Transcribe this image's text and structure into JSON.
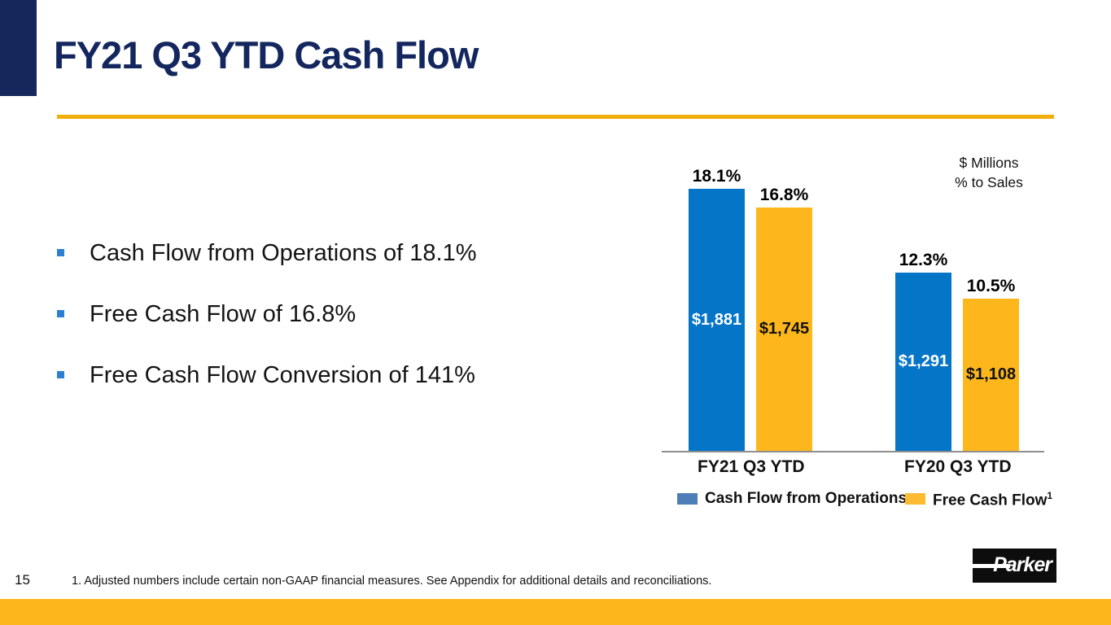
{
  "slide": {
    "title": "FY21 Q3 YTD Cash Flow",
    "page_number": "15",
    "footnote": "1. Adjusted numbers include certain non-GAAP financial measures. See Appendix for additional details and reconciliations.",
    "logo_text": "Parker"
  },
  "bullets": [
    "Cash Flow from Operations of 18.1%",
    "Free Cash Flow of 16.8%",
    "Free Cash Flow Conversion of 141%"
  ],
  "chart_data": {
    "type": "bar",
    "title": "",
    "units_line1": "$ Millions",
    "units_line2": "% to Sales",
    "categories": [
      "FY21 Q3 YTD",
      "FY20 Q3 YTD"
    ],
    "series": [
      {
        "name": "Cash Flow from Operations",
        "pct_to_sales": [
          18.1,
          12.3
        ],
        "dollars_millions": [
          1881,
          1291
        ],
        "pct_labels": [
          "18.1%",
          "12.3%"
        ],
        "dollar_labels": [
          "$1,881",
          "$1,291"
        ],
        "bar_color": "#0575C8",
        "legend_color": "#4E7EB8",
        "value_label_color": "#FFFFFF"
      },
      {
        "name": "Free Cash Flow",
        "legend_superscript": "1",
        "pct_to_sales": [
          16.8,
          10.5
        ],
        "dollars_millions": [
          1745,
          1108
        ],
        "pct_labels": [
          "16.8%",
          "10.5%"
        ],
        "dollar_labels": [
          "$1,745",
          "$1,108"
        ],
        "bar_color": "#FDB71C",
        "legend_color": "#FCBB31",
        "value_label_color": "#111111"
      }
    ],
    "ylim": [
      0,
      20
    ],
    "y_axis_visible": false,
    "grid": false,
    "legend_position": "bottom"
  },
  "colors": {
    "title_navy": "#13265E",
    "corner_bar_navy": "#16275B",
    "title_rule_gold": "#F0AF0A",
    "bottom_band_yellow": "#FDB71C",
    "bullet_square_blue": "#2E7FD0",
    "bar_blue": "#0575C8",
    "bar_yellow": "#FDB71C",
    "axis_gray": "#8F8F8F"
  }
}
